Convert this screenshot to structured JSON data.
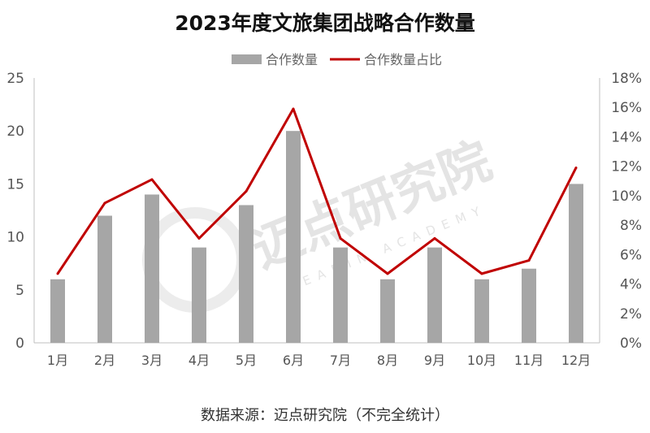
{
  "chart_data": {
    "type": "bar",
    "title": "2023年度文旅集团战略合作数量",
    "categories": [
      "1月",
      "2月",
      "3月",
      "4月",
      "5月",
      "6月",
      "7月",
      "8月",
      "9月",
      "10月",
      "11月",
      "12月"
    ],
    "series": [
      {
        "name": "合作数量",
        "type": "bar",
        "axis": "left",
        "color": "#a6a6a6",
        "values": [
          6,
          12,
          14,
          9,
          13,
          20,
          9,
          6,
          9,
          6,
          7,
          15
        ]
      },
      {
        "name": "合作数量占比",
        "type": "line",
        "axis": "right",
        "color": "#c00000",
        "values": [
          4.7,
          9.5,
          11.1,
          7.1,
          10.3,
          15.9,
          7.1,
          4.7,
          7.1,
          4.7,
          5.6,
          11.9
        ]
      }
    ],
    "yleft": {
      "ylim": [
        0,
        25
      ],
      "ticks": [
        "0",
        "5",
        "10",
        "15",
        "20",
        "25"
      ]
    },
    "yright": {
      "ylim": [
        0,
        18
      ],
      "ticks": [
        "0%",
        "2%",
        "4%",
        "6%",
        "8%",
        "10%",
        "12%",
        "14%",
        "16%",
        "18%"
      ]
    },
    "legend": "top-center",
    "grid": false
  },
  "watermark": {
    "name": "迈点研究院",
    "english": "MEADIN ACADEMY"
  },
  "source_note": "数据来源：迈点研究院（不完全统计）"
}
